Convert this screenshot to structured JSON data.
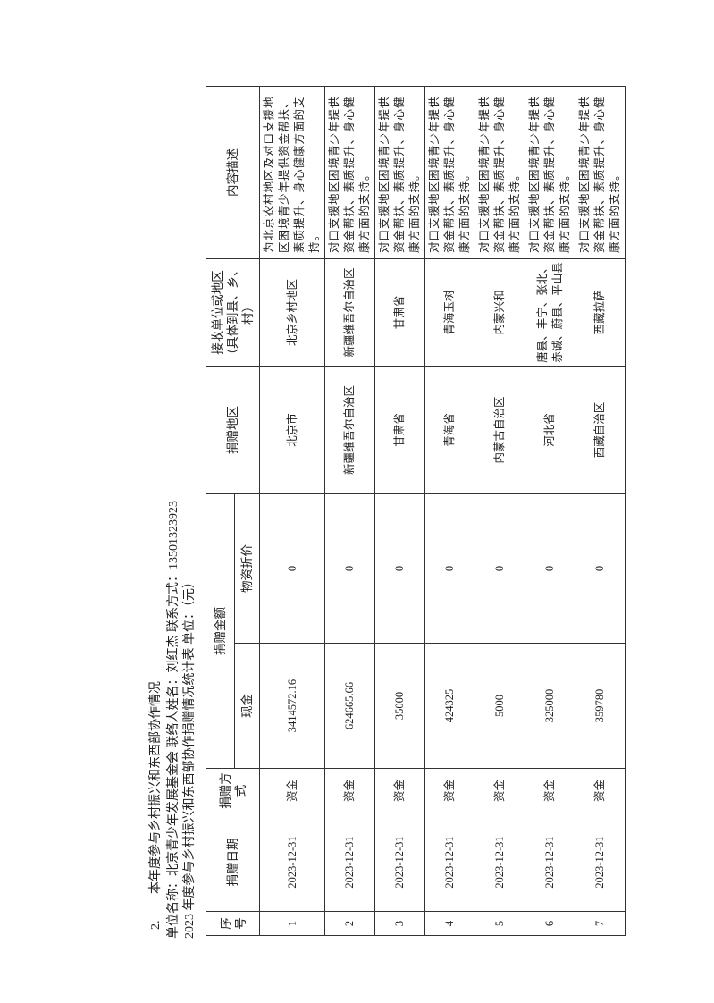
{
  "section_number": "2.",
  "section_title": "本年度参与乡村振兴和东西部协作情况",
  "org_line": "单位名称：北京青少年发展基金会   联络人姓名：刘红杰   联系方式：13501323923",
  "table_caption": "2023 年度参与乡村振兴和东西部协作捐赠情况统计表   单位：（元）",
  "headers": {
    "index": "序号",
    "date": "捐赠日期",
    "method": "捐赠方式",
    "amount": "捐赠金额",
    "cash": "现金",
    "goods": "物资折价",
    "region": "捐赠地区",
    "recipient": "接收单位或地区（具体到县、乡、村）",
    "description": "内容描述"
  },
  "rows": [
    {
      "index": "1",
      "date": "2023-12-31",
      "method": "资金",
      "cash": "3414572.16",
      "goods": "0",
      "region": "北京市",
      "recipient": "北京乡村地区",
      "description": "为北京农村地区及对口支援地区困境青少年提供资金帮扶、素质提升、身心健康方面的支持。"
    },
    {
      "index": "2",
      "date": "2023-12-31",
      "method": "资金",
      "cash": "624665.66",
      "goods": "0",
      "region": "新疆维吾尔自治区",
      "recipient": "新疆维吾尔自治区",
      "description": "对口支援地区困境青少年提供资金帮扶、素质提升、身心健康方面的支持。"
    },
    {
      "index": "3",
      "date": "2023-12-31",
      "method": "资金",
      "cash": "35000",
      "goods": "0",
      "region": "甘肃省",
      "recipient": "甘肃省",
      "description": "对口支援地区困境青少年提供资金帮扶、素质提升、身心健康方面的支持。"
    },
    {
      "index": "4",
      "date": "2023-12-31",
      "method": "资金",
      "cash": "424325",
      "goods": "0",
      "region": "青海省",
      "recipient": "青海玉树",
      "description": "对口支援地区困境青少年提供资金帮扶、素质提升、身心健康方面的支持。"
    },
    {
      "index": "5",
      "date": "2023-12-31",
      "method": "资金",
      "cash": "5000",
      "goods": "0",
      "region": "内蒙古自治区",
      "recipient": "内蒙兴和",
      "description": "对口支援地区困境青少年提供资金帮扶、素质提升、身心健康方面的支持。"
    },
    {
      "index": "6",
      "date": "2023-12-31",
      "method": "资金",
      "cash": "325000",
      "goods": "0",
      "region": "河北省",
      "recipient": "唐县、丰宁、张北、赤诚、蔚县、平山县",
      "description": "对口支援地区困境青少年提供资金帮扶、素质提升、身心健康方面的支持。"
    },
    {
      "index": "7",
      "date": "2023-12-31",
      "method": "资金",
      "cash": "359780",
      "goods": "0",
      "region": "西藏自治区",
      "recipient": "西藏拉萨",
      "description": "对口支援地区困境青少年提供资金帮扶、素质提升、身心健康方面的支持。"
    }
  ]
}
